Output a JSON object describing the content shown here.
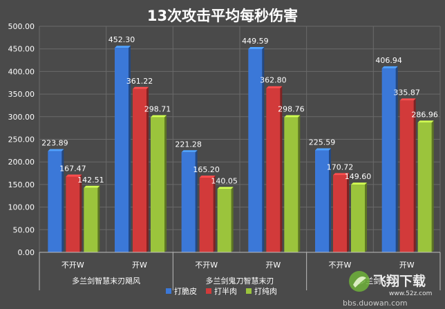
{
  "chart_data": {
    "type": "bar",
    "title": "13次攻击平均每秒伤害",
    "ylim": [
      0,
      500
    ],
    "ytick_step": 50,
    "grid": true,
    "legend_position": "bottom",
    "groups": [
      {
        "label": "多兰剑智慧末刃飓风",
        "subcategories": [
          "不开W",
          "开W"
        ]
      },
      {
        "label": "多兰剑鬼刀智慧末刃",
        "subcategories": [
          "不开W",
          "开W"
        ]
      },
      {
        "label": "多兰剑…",
        "subcategories": [
          "不开W",
          "开W"
        ]
      }
    ],
    "series": [
      {
        "name": "打脆皮",
        "color": "#3b78d8",
        "values": [
          223.89,
          452.3,
          221.28,
          449.59,
          225.59,
          406.94
        ]
      },
      {
        "name": "打半肉",
        "color": "#d23a3a",
        "values": [
          167.47,
          361.22,
          165.2,
          362.8,
          170.72,
          335.87
        ]
      },
      {
        "name": "打纯肉",
        "color": "#9bc43c",
        "values": [
          142.51,
          298.71,
          140.05,
          298.76,
          149.6,
          286.96
        ]
      }
    ]
  },
  "watermark": {
    "logo_text": "飞翔下载",
    "domain": "www.52z.com",
    "forum": "bbs.duowan.com"
  }
}
